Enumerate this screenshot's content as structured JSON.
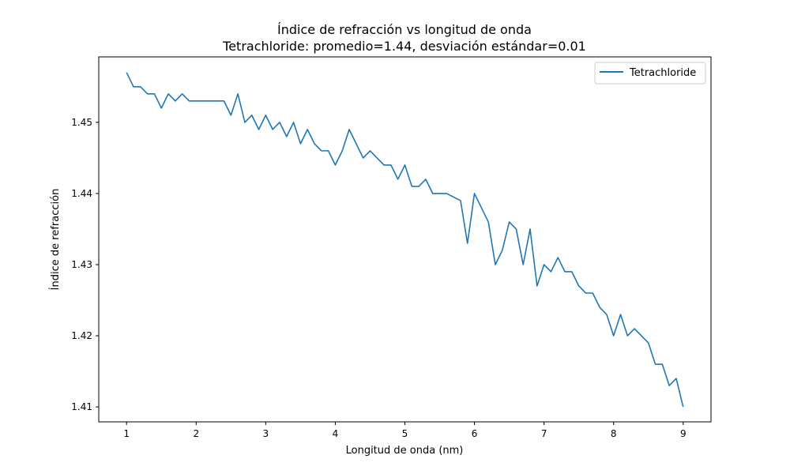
{
  "chart_data": {
    "type": "line",
    "title": "Índice de refracción vs longitud de onda",
    "subtitle": "Tetrachloride: promedio=1.44, desviación estándar=0.01",
    "xlabel": "Longitud de onda (nm)",
    "ylabel": "Índice de refracción",
    "xlim": [
      0.6,
      9.4
    ],
    "ylim": [
      1.4079,
      1.4592
    ],
    "xticks": [
      1,
      2,
      3,
      4,
      5,
      6,
      7,
      8,
      9
    ],
    "yticks": [
      1.41,
      1.42,
      1.43,
      1.44,
      1.45
    ],
    "xtick_labels": [
      "1",
      "2",
      "3",
      "4",
      "5",
      "6",
      "7",
      "8",
      "9"
    ],
    "ytick_labels": [
      "1.41",
      "1.42",
      "1.43",
      "1.44",
      "1.45"
    ],
    "grid": false,
    "legend": "top-right",
    "series": [
      {
        "name": "Tetrachloride",
        "color": "#1f77b4",
        "x": [
          1.0,
          1.1,
          1.2,
          1.3,
          1.4,
          1.5,
          1.6,
          1.7,
          1.8,
          1.9,
          2.0,
          2.1,
          2.2,
          2.3,
          2.4,
          2.5,
          2.6,
          2.7,
          2.8,
          2.9,
          3.0,
          3.1,
          3.2,
          3.3,
          3.4,
          3.5,
          3.6,
          3.7,
          3.8,
          3.9,
          4.0,
          4.1,
          4.2,
          4.3,
          4.4,
          4.5,
          4.6,
          4.7,
          4.8,
          4.9,
          5.0,
          5.1,
          5.2,
          5.3,
          5.4,
          5.5,
          5.6,
          5.7,
          5.8,
          5.9,
          6.0,
          6.1,
          6.2,
          6.3,
          6.4,
          6.5,
          6.6,
          6.7,
          6.8,
          6.9,
          7.0,
          7.1,
          7.2,
          7.3,
          7.4,
          7.5,
          7.6,
          7.7,
          7.8,
          7.9,
          8.0,
          8.1,
          8.2,
          8.3,
          8.4,
          8.5,
          8.6,
          8.7,
          8.8,
          8.9,
          9.0
        ],
        "y": [
          1.457,
          1.455,
          1.455,
          1.454,
          1.454,
          1.452,
          1.454,
          1.453,
          1.454,
          1.453,
          1.453,
          1.453,
          1.453,
          1.453,
          1.453,
          1.451,
          1.454,
          1.45,
          1.451,
          1.449,
          1.451,
          1.449,
          1.45,
          1.448,
          1.45,
          1.447,
          1.449,
          1.447,
          1.446,
          1.446,
          1.444,
          1.446,
          1.449,
          1.447,
          1.445,
          1.446,
          1.445,
          1.444,
          1.444,
          1.442,
          1.444,
          1.441,
          1.441,
          1.442,
          1.44,
          1.44,
          1.44,
          1.4395,
          1.439,
          1.433,
          1.44,
          1.438,
          1.436,
          1.43,
          1.432,
          1.436,
          1.435,
          1.43,
          1.435,
          1.427,
          1.43,
          1.429,
          1.431,
          1.429,
          1.429,
          1.427,
          1.426,
          1.426,
          1.424,
          1.423,
          1.42,
          1.423,
          1.42,
          1.421,
          1.42,
          1.419,
          1.416,
          1.416,
          1.413,
          1.414,
          1.41
        ]
      }
    ]
  }
}
